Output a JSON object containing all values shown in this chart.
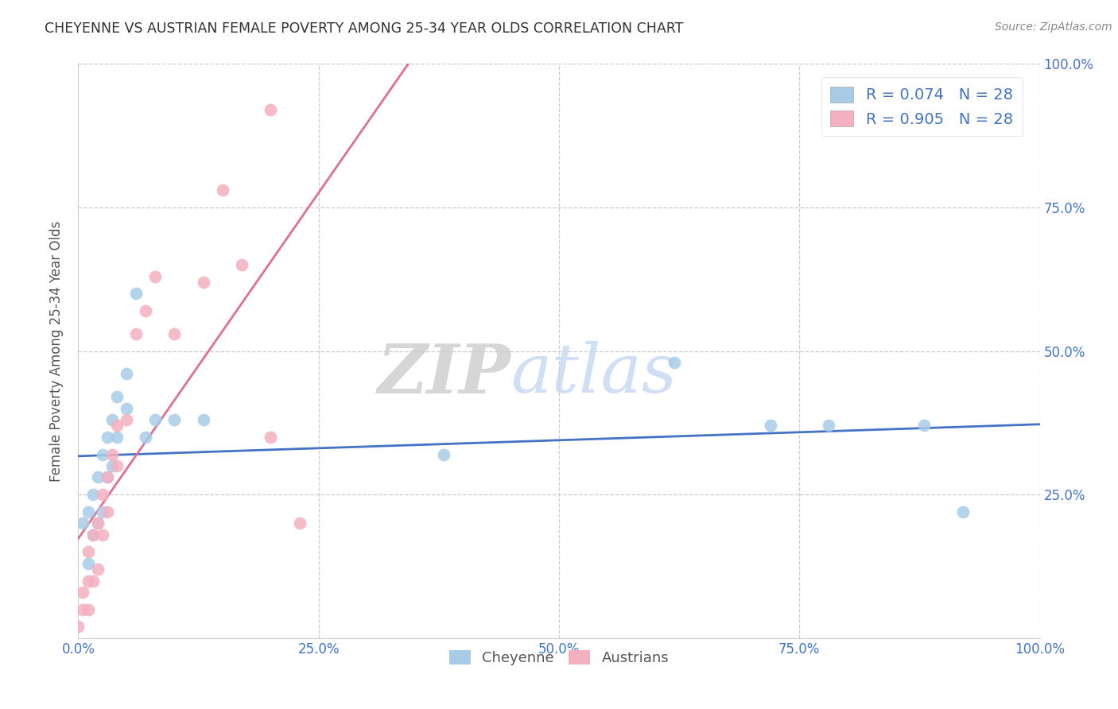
{
  "title": "CHEYENNE VS AUSTRIAN FEMALE POVERTY AMONG 25-34 YEAR OLDS CORRELATION CHART",
  "source": "Source: ZipAtlas.com",
  "ylabel": "Female Poverty Among 25-34 Year Olds",
  "xlim": [
    0,
    1.0
  ],
  "ylim": [
    0,
    1.0
  ],
  "xticks": [
    0.0,
    0.25,
    0.5,
    0.75,
    1.0
  ],
  "yticks": [
    0.0,
    0.25,
    0.5,
    0.75,
    1.0
  ],
  "xtick_labels": [
    "0.0%",
    "25.0%",
    "50.0%",
    "75.0%",
    "100.0%"
  ],
  "ytick_labels_right": [
    "",
    "25.0%",
    "50.0%",
    "75.0%",
    "100.0%"
  ],
  "cheyenne_color": "#a8cce8",
  "austrians_color": "#f4b0c0",
  "cheyenne_line_color": "#4472c4",
  "austrians_line_color": "#e07090",
  "cheyenne_R": 0.074,
  "austrians_R": 0.905,
  "N": 28,
  "cheyenne_x": [
    0.005,
    0.01,
    0.01,
    0.015,
    0.015,
    0.02,
    0.02,
    0.025,
    0.025,
    0.03,
    0.03,
    0.035,
    0.035,
    0.04,
    0.04,
    0.05,
    0.05,
    0.06,
    0.07,
    0.08,
    0.1,
    0.13,
    0.38,
    0.62,
    0.72,
    0.78,
    0.88,
    0.92
  ],
  "cheyenne_y": [
    0.2,
    0.13,
    0.22,
    0.18,
    0.25,
    0.2,
    0.28,
    0.22,
    0.32,
    0.28,
    0.35,
    0.3,
    0.38,
    0.35,
    0.42,
    0.4,
    0.46,
    0.6,
    0.35,
    0.38,
    0.38,
    0.38,
    0.32,
    0.48,
    0.37,
    0.37,
    0.37,
    0.22
  ],
  "austrians_x": [
    0.0,
    0.005,
    0.005,
    0.01,
    0.01,
    0.01,
    0.015,
    0.015,
    0.02,
    0.02,
    0.025,
    0.025,
    0.03,
    0.03,
    0.035,
    0.04,
    0.04,
    0.05,
    0.06,
    0.07,
    0.08,
    0.1,
    0.13,
    0.15,
    0.17,
    0.2,
    0.2,
    0.23
  ],
  "austrians_y": [
    0.02,
    0.05,
    0.08,
    0.05,
    0.1,
    0.15,
    0.1,
    0.18,
    0.12,
    0.2,
    0.18,
    0.25,
    0.22,
    0.28,
    0.32,
    0.3,
    0.37,
    0.38,
    0.53,
    0.57,
    0.63,
    0.53,
    0.62,
    0.78,
    0.65,
    0.92,
    0.35,
    0.2
  ],
  "watermark_zip": "ZIP",
  "watermark_atlas": "atlas",
  "background_color": "#ffffff",
  "grid_color": "#cccccc",
  "title_color": "#333333",
  "axis_label_color": "#555555",
  "tick_color": "#4472c4",
  "legend_R_color": "#4472c4",
  "source_color": "#888888"
}
